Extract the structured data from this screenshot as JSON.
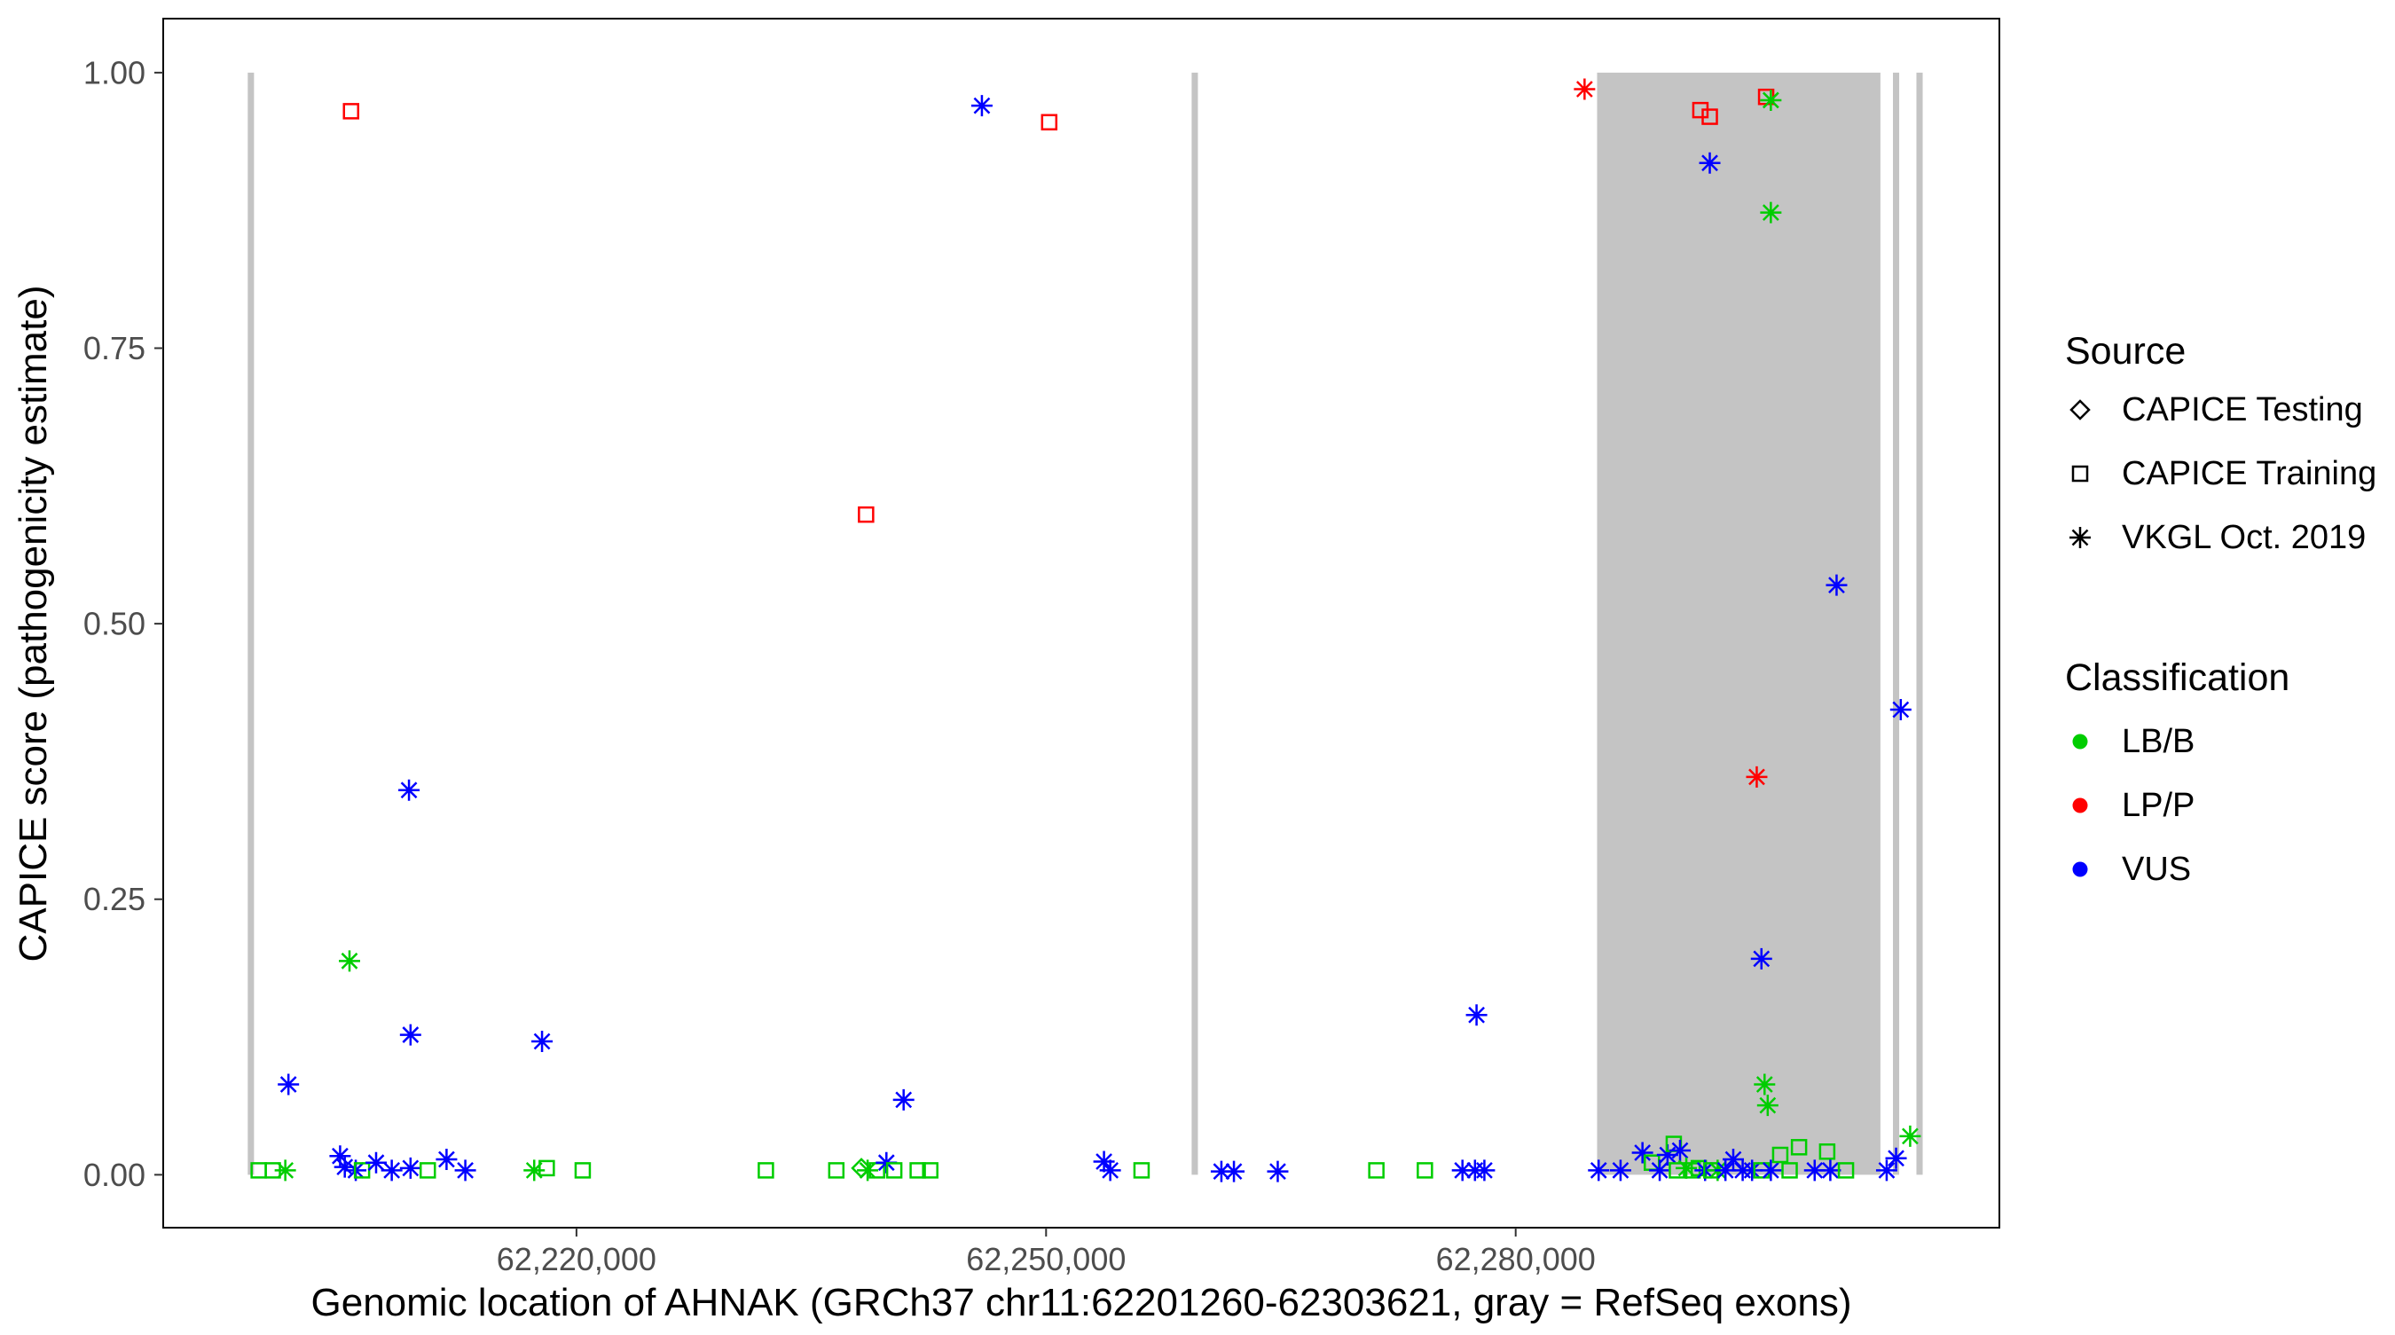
{
  "chart_data": {
    "type": "scatter",
    "title": "",
    "xlabel": "Genomic location of AHNAK (GRCh37 chr11:62201260-62303621, gray = RefSeq exons)",
    "ylabel": "CAPICE score (pathogenicity estimate)",
    "xlim": [
      62193600,
      62310900
    ],
    "ylim": [
      -0.048,
      1.049
    ],
    "x_ticks": [
      {
        "value": 62220000,
        "label": "62,220,000"
      },
      {
        "value": 62250000,
        "label": "62,250,000"
      },
      {
        "value": 62280000,
        "label": "62,280,000"
      }
    ],
    "y_ticks": [
      {
        "value": 0.0,
        "label": "0.00"
      },
      {
        "value": 0.25,
        "label": "0.25"
      },
      {
        "value": 0.5,
        "label": "0.50"
      },
      {
        "value": 0.75,
        "label": "0.75"
      },
      {
        "value": 1.0,
        "label": "1.00"
      }
    ],
    "grid": "off",
    "legend_position": "right",
    "panel_border_color": "#000000",
    "background_color": "#FFFFFF",
    "exon_color": "#C4C4C4",
    "exon_regions": [
      {
        "start": 62199000,
        "end": 62199400
      },
      {
        "start": 62259300,
        "end": 62259700
      },
      {
        "start": 62285200,
        "end": 62303300
      },
      {
        "start": 62304100,
        "end": 62304500
      },
      {
        "start": 62305600,
        "end": 62306000
      }
    ],
    "classification_colors": {
      "LB/B": "#00CD00",
      "LP/P": "#FF0000",
      "VUS": "#0000FF"
    },
    "source_shapes": {
      "testing": "diamond",
      "training": "square",
      "vkgl": "asterisk"
    },
    "points": [
      {
        "x": 62205600,
        "y": 0.965,
        "cls": "LP/P",
        "src": "training"
      },
      {
        "x": 62205500,
        "y": 0.194,
        "cls": "LB/B",
        "src": "vkgl"
      },
      {
        "x": 62209300,
        "y": 0.349,
        "cls": "VUS",
        "src": "vkgl"
      },
      {
        "x": 62209400,
        "y": 0.127,
        "cls": "VUS",
        "src": "vkgl"
      },
      {
        "x": 62201600,
        "y": 0.082,
        "cls": "VUS",
        "src": "vkgl"
      },
      {
        "x": 62217800,
        "y": 0.121,
        "cls": "VUS",
        "src": "vkgl"
      },
      {
        "x": 62238500,
        "y": 0.599,
        "cls": "LP/P",
        "src": "training"
      },
      {
        "x": 62240900,
        "y": 0.068,
        "cls": "VUS",
        "src": "vkgl"
      },
      {
        "x": 62245900,
        "y": 0.97,
        "cls": "VUS",
        "src": "vkgl"
      },
      {
        "x": 62250200,
        "y": 0.955,
        "cls": "LP/P",
        "src": "training"
      },
      {
        "x": 62253700,
        "y": 0.012,
        "cls": "VUS",
        "src": "vkgl"
      },
      {
        "x": 62277500,
        "y": 0.145,
        "cls": "VUS",
        "src": "vkgl"
      },
      {
        "x": 62284400,
        "y": 0.985,
        "cls": "LP/P",
        "src": "vkgl"
      },
      {
        "x": 62291800,
        "y": 0.966,
        "cls": "LP/P",
        "src": "training"
      },
      {
        "x": 62292400,
        "y": 0.96,
        "cls": "LP/P",
        "src": "training"
      },
      {
        "x": 62296000,
        "y": 0.978,
        "cls": "LP/P",
        "src": "training"
      },
      {
        "x": 62296300,
        "y": 0.975,
        "cls": "LB/B",
        "src": "vkgl"
      },
      {
        "x": 62292400,
        "y": 0.918,
        "cls": "VUS",
        "src": "vkgl"
      },
      {
        "x": 62296300,
        "y": 0.873,
        "cls": "LB/B",
        "src": "vkgl"
      },
      {
        "x": 62300500,
        "y": 0.535,
        "cls": "VUS",
        "src": "vkgl"
      },
      {
        "x": 62304600,
        "y": 0.422,
        "cls": "VUS",
        "src": "vkgl"
      },
      {
        "x": 62295400,
        "y": 0.361,
        "cls": "LP/P",
        "src": "vkgl"
      },
      {
        "x": 62295700,
        "y": 0.196,
        "cls": "VUS",
        "src": "vkgl"
      },
      {
        "x": 62295900,
        "y": 0.082,
        "cls": "LB/B",
        "src": "vkgl"
      },
      {
        "x": 62296100,
        "y": 0.063,
        "cls": "LB/B",
        "src": "vkgl"
      },
      {
        "x": 62305200,
        "y": 0.035,
        "cls": "LB/B",
        "src": "vkgl"
      },
      {
        "x": 62199700,
        "y": 0.004,
        "cls": "LB/B",
        "src": "training"
      },
      {
        "x": 62200600,
        "y": 0.004,
        "cls": "LB/B",
        "src": "training"
      },
      {
        "x": 62201400,
        "y": 0.004,
        "cls": "LB/B",
        "src": "vkgl"
      },
      {
        "x": 62204900,
        "y": 0.017,
        "cls": "VUS",
        "src": "vkgl"
      },
      {
        "x": 62205200,
        "y": 0.007,
        "cls": "VUS",
        "src": "vkgl"
      },
      {
        "x": 62205900,
        "y": 0.004,
        "cls": "VUS",
        "src": "vkgl"
      },
      {
        "x": 62206300,
        "y": 0.004,
        "cls": "LB/B",
        "src": "training"
      },
      {
        "x": 62207200,
        "y": 0.011,
        "cls": "VUS",
        "src": "vkgl"
      },
      {
        "x": 62208200,
        "y": 0.004,
        "cls": "VUS",
        "src": "vkgl"
      },
      {
        "x": 62209400,
        "y": 0.006,
        "cls": "VUS",
        "src": "vkgl"
      },
      {
        "x": 62210500,
        "y": 0.004,
        "cls": "LB/B",
        "src": "training"
      },
      {
        "x": 62211700,
        "y": 0.014,
        "cls": "VUS",
        "src": "vkgl"
      },
      {
        "x": 62212900,
        "y": 0.004,
        "cls": "VUS",
        "src": "vkgl"
      },
      {
        "x": 62217300,
        "y": 0.004,
        "cls": "LB/B",
        "src": "vkgl"
      },
      {
        "x": 62218100,
        "y": 0.006,
        "cls": "LB/B",
        "src": "training"
      },
      {
        "x": 62220400,
        "y": 0.004,
        "cls": "LB/B",
        "src": "training"
      },
      {
        "x": 62232100,
        "y": 0.004,
        "cls": "LB/B",
        "src": "training"
      },
      {
        "x": 62236600,
        "y": 0.004,
        "cls": "LB/B",
        "src": "training"
      },
      {
        "x": 62238200,
        "y": 0.006,
        "cls": "LB/B",
        "src": "testing"
      },
      {
        "x": 62238600,
        "y": 0.004,
        "cls": "LB/B",
        "src": "vkgl"
      },
      {
        "x": 62239200,
        "y": 0.004,
        "cls": "LB/B",
        "src": "training"
      },
      {
        "x": 62239800,
        "y": 0.011,
        "cls": "VUS",
        "src": "vkgl"
      },
      {
        "x": 62240300,
        "y": 0.004,
        "cls": "LB/B",
        "src": "training"
      },
      {
        "x": 62241800,
        "y": 0.004,
        "cls": "LB/B",
        "src": "training"
      },
      {
        "x": 62242600,
        "y": 0.004,
        "cls": "LB/B",
        "src": "training"
      },
      {
        "x": 62254100,
        "y": 0.004,
        "cls": "VUS",
        "src": "vkgl"
      },
      {
        "x": 62256100,
        "y": 0.004,
        "cls": "LB/B",
        "src": "training"
      },
      {
        "x": 62261200,
        "y": 0.003,
        "cls": "VUS",
        "src": "vkgl"
      },
      {
        "x": 62262000,
        "y": 0.003,
        "cls": "VUS",
        "src": "vkgl"
      },
      {
        "x": 62264800,
        "y": 0.003,
        "cls": "VUS",
        "src": "vkgl"
      },
      {
        "x": 62271100,
        "y": 0.004,
        "cls": "LB/B",
        "src": "training"
      },
      {
        "x": 62274200,
        "y": 0.004,
        "cls": "LB/B",
        "src": "training"
      },
      {
        "x": 62276600,
        "y": 0.004,
        "cls": "VUS",
        "src": "vkgl"
      },
      {
        "x": 62277400,
        "y": 0.004,
        "cls": "VUS",
        "src": "vkgl"
      },
      {
        "x": 62278000,
        "y": 0.004,
        "cls": "VUS",
        "src": "vkgl"
      },
      {
        "x": 62285300,
        "y": 0.004,
        "cls": "VUS",
        "src": "vkgl"
      },
      {
        "x": 62286700,
        "y": 0.004,
        "cls": "VUS",
        "src": "vkgl"
      },
      {
        "x": 62288100,
        "y": 0.02,
        "cls": "VUS",
        "src": "vkgl"
      },
      {
        "x": 62288700,
        "y": 0.011,
        "cls": "LB/B",
        "src": "training"
      },
      {
        "x": 62289200,
        "y": 0.004,
        "cls": "VUS",
        "src": "vkgl"
      },
      {
        "x": 62289700,
        "y": 0.018,
        "cls": "VUS",
        "src": "vkgl"
      },
      {
        "x": 62290100,
        "y": 0.028,
        "cls": "LB/B",
        "src": "training"
      },
      {
        "x": 62290500,
        "y": 0.022,
        "cls": "VUS",
        "src": "vkgl"
      },
      {
        "x": 62290300,
        "y": 0.004,
        "cls": "LB/B",
        "src": "training"
      },
      {
        "x": 62290900,
        "y": 0.006,
        "cls": "LB/B",
        "src": "vkgl"
      },
      {
        "x": 62291300,
        "y": 0.004,
        "cls": "LB/B",
        "src": "training"
      },
      {
        "x": 62291700,
        "y": 0.006,
        "cls": "LB/B",
        "src": "training"
      },
      {
        "x": 62292100,
        "y": 0.004,
        "cls": "VUS",
        "src": "vkgl"
      },
      {
        "x": 62292500,
        "y": 0.004,
        "cls": "LB/B",
        "src": "training"
      },
      {
        "x": 62292900,
        "y": 0.004,
        "cls": "LB/B",
        "src": "vkgl"
      },
      {
        "x": 62293400,
        "y": 0.004,
        "cls": "VUS",
        "src": "vkgl"
      },
      {
        "x": 62293900,
        "y": 0.014,
        "cls": "VUS",
        "src": "vkgl"
      },
      {
        "x": 62294500,
        "y": 0.004,
        "cls": "VUS",
        "src": "vkgl"
      },
      {
        "x": 62295100,
        "y": 0.004,
        "cls": "VUS",
        "src": "vkgl"
      },
      {
        "x": 62295700,
        "y": 0.004,
        "cls": "LB/B",
        "src": "training"
      },
      {
        "x": 62296300,
        "y": 0.004,
        "cls": "VUS",
        "src": "vkgl"
      },
      {
        "x": 62296900,
        "y": 0.018,
        "cls": "LB/B",
        "src": "training"
      },
      {
        "x": 62297500,
        "y": 0.004,
        "cls": "LB/B",
        "src": "training"
      },
      {
        "x": 62298100,
        "y": 0.025,
        "cls": "LB/B",
        "src": "training"
      },
      {
        "x": 62299100,
        "y": 0.004,
        "cls": "VUS",
        "src": "vkgl"
      },
      {
        "x": 62299900,
        "y": 0.021,
        "cls": "LB/B",
        "src": "training"
      },
      {
        "x": 62300100,
        "y": 0.004,
        "cls": "VUS",
        "src": "vkgl"
      },
      {
        "x": 62301100,
        "y": 0.004,
        "cls": "LB/B",
        "src": "training"
      },
      {
        "x": 62303700,
        "y": 0.004,
        "cls": "VUS",
        "src": "vkgl"
      },
      {
        "x": 62304300,
        "y": 0.015,
        "cls": "VUS",
        "src": "vkgl"
      }
    ]
  },
  "legend": {
    "source": {
      "title": "Source",
      "items": [
        {
          "label": "CAPICE Testing",
          "shape": "diamond"
        },
        {
          "label": "CAPICE Training",
          "shape": "square"
        },
        {
          "label": "VKGL Oct. 2019",
          "shape": "asterisk"
        }
      ]
    },
    "classification": {
      "title": "Classification",
      "items": [
        {
          "label": "LB/B",
          "color": "#00CD00"
        },
        {
          "label": "LP/P",
          "color": "#FF0000"
        },
        {
          "label": "VUS",
          "color": "#0000FF"
        }
      ]
    }
  }
}
